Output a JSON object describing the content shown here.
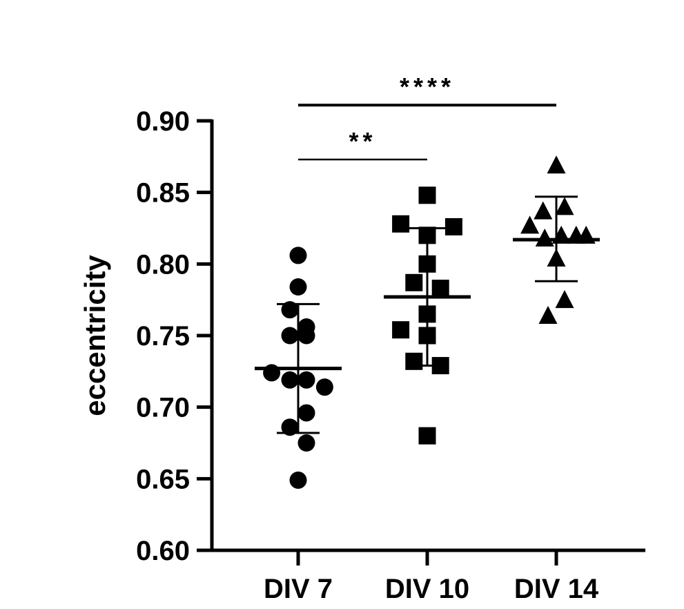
{
  "chart_data": {
    "type": "scatter",
    "ylabel": "eccentricity",
    "ylim": [
      0.6,
      0.9
    ],
    "yticks": [
      "0.60",
      "0.65",
      "0.70",
      "0.75",
      "0.80",
      "0.85",
      "0.90"
    ],
    "yticks_values": [
      0.6,
      0.65,
      0.7,
      0.75,
      0.8,
      0.85,
      0.9
    ],
    "categories": [
      "DIV 7",
      "DIV 10",
      "DIV 14"
    ],
    "series": [
      {
        "category": "DIV 7",
        "marker": "circle",
        "mean": 0.727,
        "sd_upper": 0.772,
        "sd_lower": 0.682,
        "points": [
          {
            "jitter": 0,
            "y": 0.806
          },
          {
            "jitter": 0,
            "y": 0.784
          },
          {
            "jitter": -0.5,
            "y": 0.768
          },
          {
            "jitter": 0.5,
            "y": 0.756
          },
          {
            "jitter": -0.5,
            "y": 0.75
          },
          {
            "jitter": 0.5,
            "y": 0.75
          },
          {
            "jitter": -1.6,
            "y": 0.724
          },
          {
            "jitter": -0.5,
            "y": 0.719
          },
          {
            "jitter": 0.5,
            "y": 0.719
          },
          {
            "jitter": 1.6,
            "y": 0.714
          },
          {
            "jitter": -0.5,
            "y": 0.686
          },
          {
            "jitter": 0.5,
            "y": 0.696
          },
          {
            "jitter": 0.5,
            "y": 0.675
          },
          {
            "jitter": 0,
            "y": 0.649
          }
        ]
      },
      {
        "category": "DIV 10",
        "marker": "square",
        "mean": 0.777,
        "sd_upper": 0.825,
        "sd_lower": 0.729,
        "points": [
          {
            "jitter": 0,
            "y": 0.848
          },
          {
            "jitter": -1.6,
            "y": 0.828
          },
          {
            "jitter": 1.6,
            "y": 0.826
          },
          {
            "jitter": 0,
            "y": 0.82
          },
          {
            "jitter": 0,
            "y": 0.8
          },
          {
            "jitter": -0.8,
            "y": 0.787
          },
          {
            "jitter": 0.8,
            "y": 0.783
          },
          {
            "jitter": 0,
            "y": 0.765
          },
          {
            "jitter": -1.6,
            "y": 0.754
          },
          {
            "jitter": 0,
            "y": 0.75
          },
          {
            "jitter": -0.8,
            "y": 0.732
          },
          {
            "jitter": 0.8,
            "y": 0.729
          },
          {
            "jitter": 0,
            "y": 0.68
          }
        ]
      },
      {
        "category": "DIV 14",
        "marker": "triangle",
        "mean": 0.817,
        "sd_upper": 0.847,
        "sd_lower": 0.788,
        "points": [
          {
            "jitter": 0,
            "y": 0.869
          },
          {
            "jitter": -0.8,
            "y": 0.837
          },
          {
            "jitter": 0.5,
            "y": 0.84
          },
          {
            "jitter": -1.6,
            "y": 0.827
          },
          {
            "jitter": -0.7,
            "y": 0.818
          },
          {
            "jitter": 0.3,
            "y": 0.82
          },
          {
            "jitter": 1.2,
            "y": 0.82
          },
          {
            "jitter": 1.8,
            "y": 0.82
          },
          {
            "jitter": 0,
            "y": 0.804
          },
          {
            "jitter": 0.5,
            "y": 0.775
          },
          {
            "jitter": -0.5,
            "y": 0.764
          }
        ]
      }
    ],
    "significance": [
      {
        "from": "DIV 7",
        "to": "DIV 10",
        "label": "**",
        "level": 0.873
      },
      {
        "from": "DIV 7",
        "to": "DIV 14",
        "label": "****",
        "level": 0.911
      }
    ],
    "grid": false,
    "legend": "none",
    "colors": {
      "marker": "#000000",
      "axis": "#000000"
    }
  }
}
